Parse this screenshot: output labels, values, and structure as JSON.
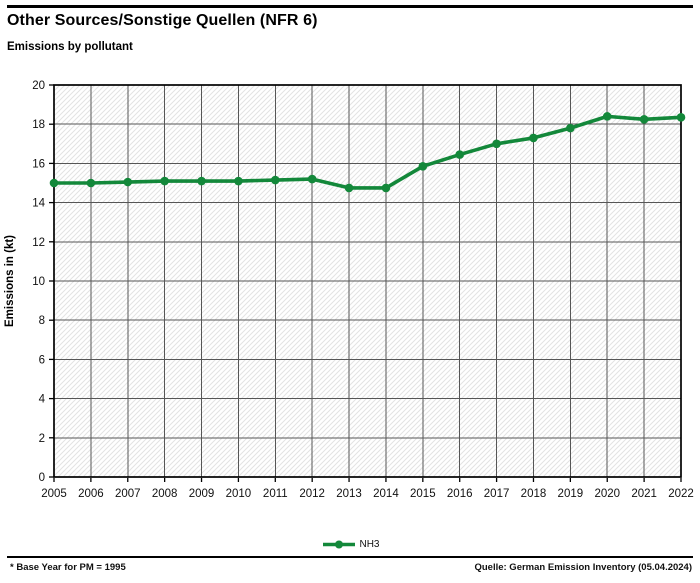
{
  "header": {
    "title": "Other Sources/Sonstige Quellen (NFR 6)",
    "subtitle": "Emissions by pollutant"
  },
  "footer": {
    "note": "* Base Year for PM = 1995",
    "source": "Quelle: German Emission Inventory (05.04.2024)"
  },
  "colors": {
    "series": "#13883a",
    "grid": "#565656",
    "hatch": "#e3e3e3",
    "border": "#000000",
    "text": "#111111"
  },
  "chart_data": {
    "type": "line",
    "title": "Other Sources/Sonstige Quellen (NFR 6)",
    "subtitle": "Emissions by pollutant",
    "xlabel": "",
    "ylabel": "Emissions in (kt)",
    "ylim": [
      0,
      20
    ],
    "ytick_step": 2,
    "grid": true,
    "plot_background": "diagonal-hatch",
    "legend_position": "bottom-center",
    "categories": [
      "2005",
      "2006",
      "2007",
      "2008",
      "2009",
      "2010",
      "2011",
      "2012",
      "2013",
      "2014",
      "2015",
      "2016",
      "2017",
      "2018",
      "2019",
      "2020",
      "2021",
      "2022"
    ],
    "series": [
      {
        "name": "NH3",
        "color": "#13883a",
        "marker": "circle",
        "values": [
          15.0,
          15.0,
          15.05,
          15.1,
          15.1,
          15.1,
          15.15,
          15.2,
          14.75,
          14.75,
          15.85,
          16.45,
          17.0,
          17.3,
          17.8,
          18.4,
          18.25,
          18.35
        ]
      }
    ]
  }
}
